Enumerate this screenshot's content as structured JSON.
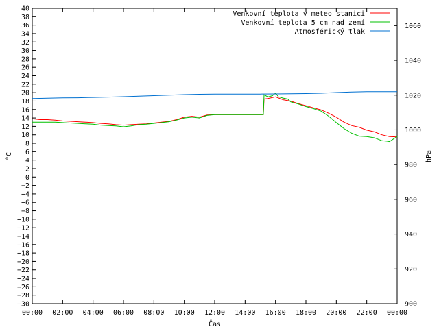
{
  "chart_data": {
    "type": "line",
    "xlabel": "Čas",
    "ylabel": "°C",
    "y2label": "hPa",
    "x_ticks": [
      "00:00",
      "02:00",
      "04:00",
      "06:00",
      "08:00",
      "10:00",
      "12:00",
      "14:00",
      "16:00",
      "18:00",
      "20:00",
      "22:00",
      "00:00"
    ],
    "ylim": [
      -30,
      40
    ],
    "y_step": 2,
    "y2lim": [
      900,
      1070
    ],
    "y2_ticks": [
      900,
      920,
      940,
      960,
      980,
      1000,
      1020,
      1040,
      1060
    ],
    "grid": false,
    "legend_position": "top-right",
    "series": [
      {
        "name": "Venkovní teplota v meteo stanici",
        "color": "#ff0000",
        "axis": "left",
        "x_hours": [
          0,
          0.5,
          1,
          1.5,
          2,
          2.5,
          3,
          3.5,
          4,
          4.5,
          5,
          5.5,
          6,
          6.5,
          7,
          7.5,
          8,
          8.5,
          9,
          9.5,
          10,
          10.5,
          11,
          11.5,
          12,
          12.5,
          13,
          13.5,
          14,
          14.5,
          15,
          15.2,
          15.25,
          15.5,
          16,
          16.5,
          17,
          17.5,
          18,
          18.5,
          19,
          19.5,
          20,
          20.5,
          21,
          21.5,
          22,
          22.5,
          23,
          23.5,
          24
        ],
        "values": [
          13.8,
          13.6,
          13.6,
          13.5,
          13.3,
          13.2,
          13.1,
          13.0,
          12.9,
          12.7,
          12.6,
          12.4,
          12.3,
          12.4,
          12.5,
          12.6,
          12.8,
          13.0,
          13.2,
          13.6,
          14.2,
          14.4,
          14.2,
          14.7,
          14.8,
          14.8,
          14.8,
          14.8,
          14.8,
          14.8,
          14.8,
          14.8,
          18.5,
          18.6,
          19.0,
          18.3,
          18.0,
          17.4,
          16.9,
          16.4,
          15.9,
          15.1,
          14.2,
          13.0,
          12.2,
          11.8,
          11.1,
          10.7,
          10.0,
          9.6,
          9.5
        ]
      },
      {
        "name": "Venkovní teplota 5 cm nad zemí",
        "color": "#00c000",
        "axis": "left",
        "x_hours": [
          0,
          0.5,
          1,
          1.5,
          2,
          2.5,
          3,
          3.5,
          4,
          4.5,
          5,
          5.5,
          6,
          6.5,
          7,
          7.5,
          8,
          8.5,
          9,
          9.5,
          10,
          10.5,
          11,
          11.5,
          12,
          12.5,
          13,
          13.5,
          14,
          14.5,
          15,
          15.2,
          15.25,
          15.5,
          15.8,
          16,
          16.2,
          16.5,
          16.8,
          17,
          17.5,
          18,
          18.5,
          19,
          19.5,
          20,
          20.5,
          21,
          21.5,
          22,
          22.5,
          23,
          23.3,
          23.5,
          24
        ],
        "values": [
          13.0,
          13.0,
          13.0,
          13.0,
          12.9,
          12.8,
          12.7,
          12.6,
          12.5,
          12.3,
          12.2,
          12.1,
          11.9,
          12.1,
          12.4,
          12.5,
          12.7,
          12.9,
          13.1,
          13.5,
          14.0,
          14.2,
          14.0,
          14.6,
          14.8,
          14.8,
          14.8,
          14.8,
          14.8,
          14.8,
          14.8,
          14.8,
          19.5,
          19.0,
          19.3,
          19.9,
          19.0,
          18.7,
          18.5,
          17.8,
          17.3,
          16.7,
          16.2,
          15.6,
          14.4,
          12.9,
          11.5,
          10.4,
          9.7,
          9.6,
          9.3,
          8.6,
          8.5,
          8.4,
          9.6
        ]
      },
      {
        "name": "Atmosférický tlak",
        "color": "#0070d0",
        "axis": "right",
        "x_hours": [
          0,
          1,
          2,
          3,
          4,
          5,
          6,
          7,
          8,
          9,
          10,
          11,
          12,
          13,
          14,
          15,
          16,
          17,
          18,
          19,
          20,
          21,
          22,
          23,
          24
        ],
        "values": [
          1018,
          1018.2,
          1018.4,
          1018.5,
          1018.7,
          1018.9,
          1019.1,
          1019.4,
          1019.7,
          1020.0,
          1020.3,
          1020.5,
          1020.6,
          1020.6,
          1020.6,
          1020.6,
          1020.7,
          1020.8,
          1020.9,
          1021.1,
          1021.5,
          1021.8,
          1022.0,
          1022.0,
          1022.0
        ]
      }
    ]
  }
}
